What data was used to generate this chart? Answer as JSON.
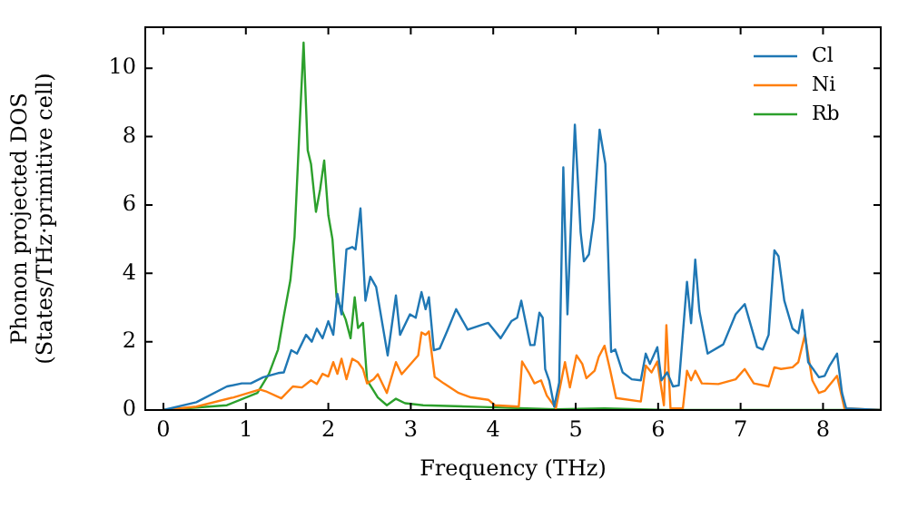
{
  "chart_data": {
    "type": "line",
    "xlabel": "Frequency (THz)",
    "ylabel": "Phonon projected DOS\n(States/THz·primitive cell)",
    "xlim": [
      -0.22,
      8.7
    ],
    "ylim": [
      0,
      11.2
    ],
    "xticks": [
      0,
      1,
      2,
      3,
      4,
      5,
      6,
      7,
      8
    ],
    "yticks": [
      0,
      2,
      4,
      6,
      8,
      10
    ],
    "grid": false,
    "legend": "top right",
    "marker": "none",
    "line_style": "solid",
    "series": [
      {
        "name": "Cl",
        "color": "#1f77b4",
        "x": [
          0,
          0.4,
          0.77,
          0.95,
          1.06,
          1.21,
          1.39,
          1.46,
          1.55,
          1.62,
          1.73,
          1.8,
          1.86,
          1.93,
          2.0,
          2.06,
          2.11,
          2.16,
          2.22,
          2.29,
          2.33,
          2.39,
          2.45,
          2.51,
          2.58,
          2.72,
          2.82,
          2.87,
          2.99,
          3.06,
          3.13,
          3.18,
          3.22,
          3.28,
          3.35,
          3.44,
          3.55,
          3.69,
          3.87,
          3.94,
          4.09,
          4.22,
          4.29,
          4.34,
          4.45,
          4.5,
          4.56,
          4.6,
          4.63,
          4.68,
          4.74,
          4.8,
          4.85,
          4.9,
          4.99,
          5.06,
          5.1,
          5.16,
          5.22,
          5.29,
          5.36,
          5.43,
          5.48,
          5.57,
          5.68,
          5.79,
          5.85,
          5.9,
          5.99,
          6.04,
          6.11,
          6.18,
          6.25,
          6.35,
          6.4,
          6.45,
          6.5,
          6.6,
          6.79,
          6.94,
          7.05,
          7.2,
          7.27,
          7.34,
          7.41,
          7.46,
          7.53,
          7.63,
          7.7,
          7.75,
          7.82,
          7.95,
          8.02,
          8.08,
          8.17,
          8.23,
          8.28,
          8.7
        ],
        "values": [
          0,
          0.23,
          0.69,
          0.78,
          0.78,
          0.96,
          1.08,
          1.1,
          1.75,
          1.65,
          2.2,
          2.0,
          2.38,
          2.1,
          2.6,
          2.2,
          3.4,
          2.8,
          4.7,
          4.77,
          4.7,
          5.9,
          3.2,
          3.9,
          3.6,
          1.6,
          3.35,
          2.2,
          2.8,
          2.7,
          3.45,
          2.95,
          3.3,
          1.75,
          1.8,
          2.3,
          2.95,
          2.35,
          2.5,
          2.55,
          2.1,
          2.6,
          2.7,
          3.2,
          1.9,
          1.9,
          2.85,
          2.7,
          1.2,
          0.85,
          0.1,
          0.8,
          7.1,
          2.8,
          8.35,
          5.2,
          4.35,
          4.55,
          5.6,
          8.2,
          7.2,
          1.7,
          1.77,
          1.1,
          0.9,
          0.87,
          1.65,
          1.35,
          1.84,
          0.87,
          1.1,
          0.69,
          0.72,
          3.75,
          2.54,
          4.4,
          2.9,
          1.65,
          1.92,
          2.8,
          3.1,
          1.84,
          1.77,
          2.2,
          4.67,
          4.5,
          3.2,
          2.38,
          2.25,
          2.93,
          1.4,
          0.96,
          1.0,
          1.3,
          1.65,
          0.5,
          0.05,
          0
        ]
      },
      {
        "name": "Ni",
        "color": "#ff7f0e",
        "x": [
          0,
          0.4,
          0.85,
          1.17,
          1.24,
          1.43,
          1.57,
          1.68,
          1.79,
          1.86,
          1.93,
          2.0,
          2.06,
          2.11,
          2.16,
          2.22,
          2.29,
          2.36,
          2.42,
          2.47,
          2.55,
          2.6,
          2.71,
          2.82,
          2.89,
          3.09,
          3.13,
          3.18,
          3.22,
          3.29,
          3.4,
          3.58,
          3.73,
          3.94,
          4.02,
          4.31,
          4.35,
          4.43,
          4.5,
          4.58,
          4.65,
          4.76,
          4.87,
          4.93,
          5.01,
          5.08,
          5.13,
          5.23,
          5.28,
          5.35,
          5.42,
          5.49,
          5.79,
          5.85,
          5.92,
          5.99,
          6.07,
          6.1,
          6.15,
          6.3,
          6.35,
          6.4,
          6.45,
          6.53,
          6.73,
          6.94,
          7.05,
          7.16,
          7.34,
          7.41,
          7.49,
          7.63,
          7.7,
          7.78,
          7.87,
          7.95,
          8.02,
          8.17,
          8.26,
          8.7
        ],
        "values": [
          0,
          0.1,
          0.37,
          0.6,
          0.55,
          0.34,
          0.69,
          0.66,
          0.87,
          0.76,
          1.06,
          0.98,
          1.4,
          1.06,
          1.5,
          0.9,
          1.5,
          1.4,
          1.2,
          0.78,
          0.9,
          1.05,
          0.5,
          1.4,
          1.05,
          1.6,
          2.27,
          2.2,
          2.3,
          0.97,
          0.78,
          0.5,
          0.37,
          0.3,
          0.14,
          0.1,
          1.42,
          1.1,
          0.78,
          0.87,
          0.42,
          0.05,
          1.4,
          0.66,
          1.6,
          1.35,
          0.93,
          1.15,
          1.56,
          1.88,
          1.15,
          0.35,
          0.25,
          1.3,
          1.1,
          1.42,
          0.14,
          2.48,
          0.05,
          0.05,
          1.15,
          0.87,
          1.15,
          0.78,
          0.76,
          0.9,
          1.2,
          0.78,
          0.69,
          1.25,
          1.2,
          1.25,
          1.4,
          2.2,
          0.87,
          0.5,
          0.56,
          1.0,
          0.05,
          0
        ]
      },
      {
        "name": "Rb",
        "color": "#2ca02c",
        "x": [
          0,
          0.77,
          1.14,
          1.28,
          1.39,
          1.46,
          1.54,
          1.59,
          1.65,
          1.7,
          1.75,
          1.79,
          1.85,
          1.9,
          1.95,
          2.0,
          2.05,
          2.1,
          2.15,
          2.21,
          2.27,
          2.32,
          2.36,
          2.42,
          2.47,
          2.6,
          2.71,
          2.82,
          2.93,
          3.15,
          3.87,
          4.76,
          5.35,
          6.1,
          8.7
        ],
        "values": [
          0,
          0.14,
          0.5,
          1.06,
          1.77,
          2.75,
          3.8,
          5.05,
          8.2,
          10.75,
          7.6,
          7.2,
          5.8,
          6.45,
          7.3,
          5.7,
          5.0,
          3.3,
          3.0,
          2.65,
          2.1,
          3.3,
          2.4,
          2.55,
          0.87,
          0.37,
          0.14,
          0.33,
          0.2,
          0.14,
          0.09,
          0.02,
          0.05,
          0,
          0
        ]
      }
    ]
  }
}
